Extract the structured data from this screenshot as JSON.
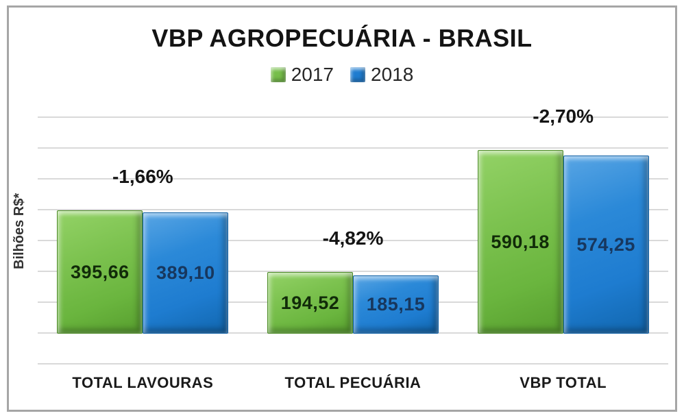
{
  "title": "VBP AGROPECUÁRIA - BRASIL",
  "y_axis_label": "Bilhões R$*",
  "colors": {
    "series_2017": "#76be4a",
    "series_2018": "#1e7cd0",
    "gridline": "#d9d9d9",
    "frame_border": "#a6a6a6",
    "text": "#141414"
  },
  "legend": [
    {
      "label": "2017",
      "color": "#76be4a"
    },
    {
      "label": "2018",
      "color": "#1e7cd0"
    }
  ],
  "chart_data": {
    "type": "bar",
    "title": "VBP AGROPECUÁRIA - BRASIL",
    "ylabel": "Bilhões R$*",
    "xlabel": "",
    "categories": [
      "TOTAL LAVOURAS",
      "TOTAL PECUÁRIA",
      "VBP TOTAL"
    ],
    "series": [
      {
        "name": "2017",
        "color": "#76be4a",
        "values": [
          395.66,
          194.52,
          590.18
        ]
      },
      {
        "name": "2018",
        "color": "#1e7cd0",
        "values": [
          389.1,
          185.15,
          574.25
        ]
      }
    ],
    "value_labels": [
      [
        "395,66",
        "194,52",
        "590,18"
      ],
      [
        "389,10",
        "185,15",
        "574,25"
      ]
    ],
    "annotations": [
      "-1,66%",
      "-4,82%",
      "-2,70%"
    ],
    "ylim": [
      -100,
      700
    ],
    "gridline_step": 100,
    "grid": true,
    "legend_position": "top",
    "value_unit": "Bilhões R$"
  }
}
